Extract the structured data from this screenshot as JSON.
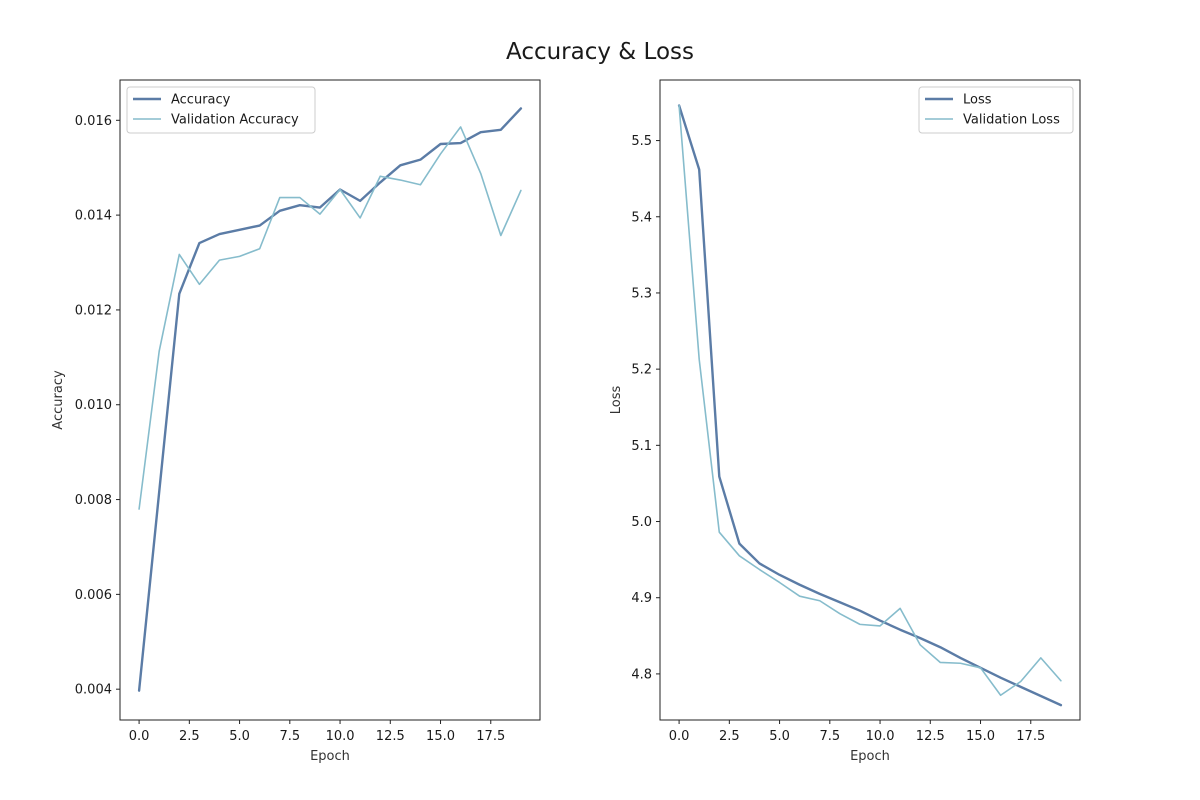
{
  "figure": {
    "title": "Accuracy & Loss"
  },
  "colors": {
    "train": "#5b7ca6",
    "validation": "#86bccc"
  },
  "chart_data": [
    {
      "type": "line",
      "xlabel": "Epoch",
      "ylabel": "Accuracy",
      "x": [
        0,
        1,
        2,
        3,
        4,
        5,
        6,
        7,
        8,
        9,
        10,
        11,
        12,
        13,
        14,
        15,
        16,
        17,
        18,
        19
      ],
      "xlim": [
        -0.95,
        19.95
      ],
      "ylim": [
        0.00335,
        0.01685
      ],
      "xticks": [
        0.0,
        2.5,
        5.0,
        7.5,
        10.0,
        12.5,
        15.0,
        17.5
      ],
      "xtick_labels": [
        "0.0",
        "2.5",
        "5.0",
        "7.5",
        "10.0",
        "12.5",
        "15.0",
        "17.5"
      ],
      "yticks": [
        0.004,
        0.006,
        0.008,
        0.01,
        0.012,
        0.014,
        0.016
      ],
      "ytick_labels": [
        "0.004",
        "0.006",
        "0.008",
        "0.010",
        "0.012",
        "0.014",
        "0.016"
      ],
      "legend": "top-left",
      "grid": false,
      "series": [
        {
          "name": "Accuracy",
          "color": "#5b7ca6",
          "width": 2.4,
          "values": [
            0.00397,
            0.00816,
            0.01234,
            0.01341,
            0.0136,
            0.01369,
            0.01378,
            0.01409,
            0.01421,
            0.01416,
            0.01454,
            0.0143,
            0.01469,
            0.01505,
            0.01517,
            0.0155,
            0.01552,
            0.01575,
            0.0158,
            0.01625
          ]
        },
        {
          "name": "Validation Accuracy",
          "color": "#86bccc",
          "width": 1.6,
          "values": [
            0.0078,
            0.01113,
            0.01317,
            0.01254,
            0.01305,
            0.01313,
            0.01329,
            0.01437,
            0.01437,
            0.01402,
            0.01454,
            0.01394,
            0.01482,
            0.01474,
            0.01464,
            0.01529,
            0.01586,
            0.01488,
            0.01357,
            0.01452
          ]
        }
      ]
    },
    {
      "type": "line",
      "xlabel": "Epoch",
      "ylabel": "Loss",
      "x": [
        0,
        1,
        2,
        3,
        4,
        5,
        6,
        7,
        8,
        9,
        10,
        11,
        12,
        13,
        14,
        15,
        16,
        17,
        18,
        19
      ],
      "xlim": [
        -0.95,
        19.95
      ],
      "ylim": [
        4.7395,
        5.5795
      ],
      "xticks": [
        0.0,
        2.5,
        5.0,
        7.5,
        10.0,
        12.5,
        15.0,
        17.5
      ],
      "xtick_labels": [
        "0.0",
        "2.5",
        "5.0",
        "7.5",
        "10.0",
        "12.5",
        "15.0",
        "17.5"
      ],
      "yticks": [
        4.8,
        4.9,
        5.0,
        5.1,
        5.2,
        5.3,
        5.4,
        5.5
      ],
      "ytick_labels": [
        "4.8",
        "4.9",
        "5.0",
        "5.1",
        "5.2",
        "5.3",
        "5.4",
        "5.5"
      ],
      "legend": "top-right",
      "grid": false,
      "series": [
        {
          "name": "Loss",
          "color": "#5b7ca6",
          "width": 2.4,
          "values": [
            5.546,
            5.462,
            5.059,
            4.971,
            4.945,
            4.93,
            4.917,
            4.905,
            4.894,
            4.883,
            4.87,
            4.858,
            4.847,
            4.835,
            4.821,
            4.808,
            4.795,
            4.783,
            4.771,
            4.759
          ]
        },
        {
          "name": "Validation Loss",
          "color": "#86bccc",
          "width": 1.6,
          "values": [
            5.546,
            5.213,
            4.986,
            4.955,
            4.937,
            4.92,
            4.902,
            4.896,
            4.879,
            4.865,
            4.863,
            4.886,
            4.838,
            4.815,
            4.814,
            4.808,
            4.772,
            4.79,
            4.821,
            4.791
          ]
        }
      ]
    }
  ]
}
